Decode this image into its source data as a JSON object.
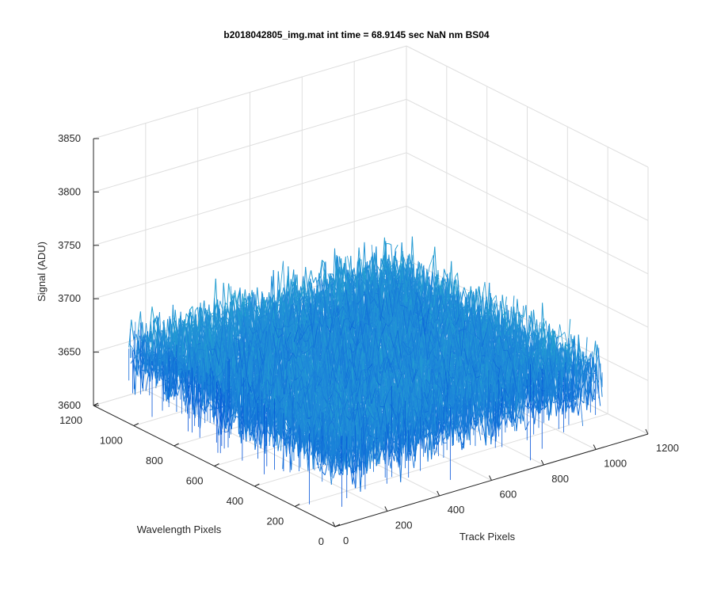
{
  "chart_data": {
    "type": "surface",
    "title": "b2018042805_img.mat int time = 68.9145 sec   NaN nm BS04",
    "xlabel": "Track Pixels",
    "ylabel": "Wavelength Pixels",
    "zlabel": "Signal (ADU)",
    "xlim": [
      0,
      1200
    ],
    "ylim": [
      0,
      1200
    ],
    "zlim": [
      3600,
      3850
    ],
    "xticks": [
      "0",
      "200",
      "400",
      "600",
      "800",
      "1000",
      "1200"
    ],
    "yticks": [
      "0",
      "200",
      "400",
      "600",
      "800",
      "1000",
      "1200"
    ],
    "zticks": [
      "3600",
      "3650",
      "3700",
      "3750",
      "3800",
      "3850"
    ],
    "grid": true,
    "surface": {
      "x_extent": [
        0,
        1024
      ],
      "y_extent": [
        0,
        1024
      ],
      "mean_signal": 3668,
      "noise_range": [
        3620,
        3720
      ],
      "color_low": "#0050d8",
      "color_mid": "#1f8ad8",
      "color_high": "#29b7c7"
    }
  },
  "colors": {
    "axis": "#262626",
    "grid": "#dedede"
  }
}
